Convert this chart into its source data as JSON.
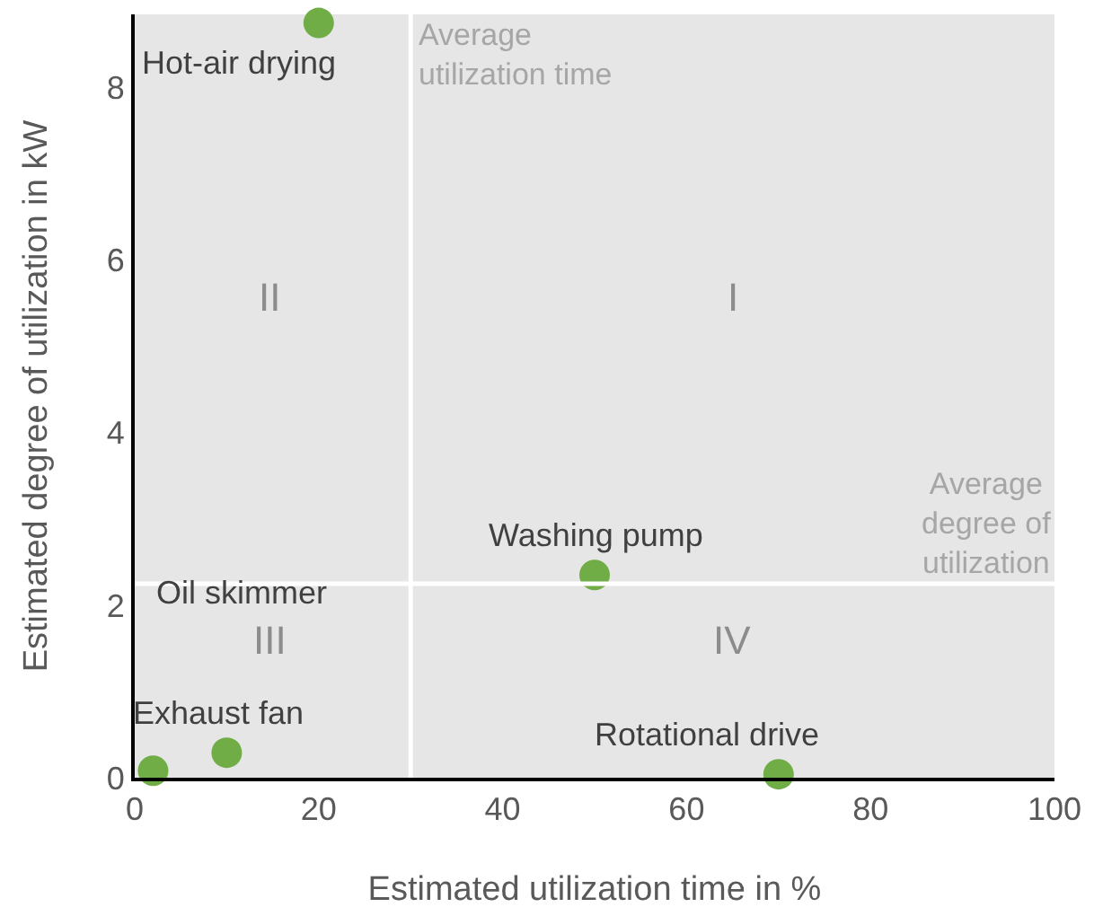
{
  "chart_data": {
    "type": "scatter",
    "xlabel": "Estimated utilization time in %",
    "ylabel": "Estimated degree of utilization in kW",
    "x": [
      20,
      50,
      2,
      10,
      70
    ],
    "values": [
      8.75,
      2.35,
      0.08,
      0.29,
      0.04
    ],
    "value_labels": [
      "Hot-air drying",
      "Washing pump",
      null,
      "Exhaust fan",
      "Rotational drive"
    ],
    "color": "#70ad47",
    "marker": "circle",
    "xlim": [
      0,
      100
    ],
    "xticks": [
      0,
      20,
      40,
      60,
      80,
      100
    ],
    "ylim": [
      0,
      8.85
    ],
    "yticks": [
      0,
      2,
      4,
      6,
      8
    ],
    "ref_lines": [
      {
        "axis": "x",
        "value": 30,
        "label": "Average\nutilization time",
        "color": "#ffffff"
      },
      {
        "axis": "y",
        "value": 2.25,
        "label": "Average\ndegree of\nutilization",
        "color": "#ffffff"
      }
    ],
    "annotations": [
      "I",
      "II",
      "III",
      "IV",
      "Oil skimmer"
    ]
  }
}
